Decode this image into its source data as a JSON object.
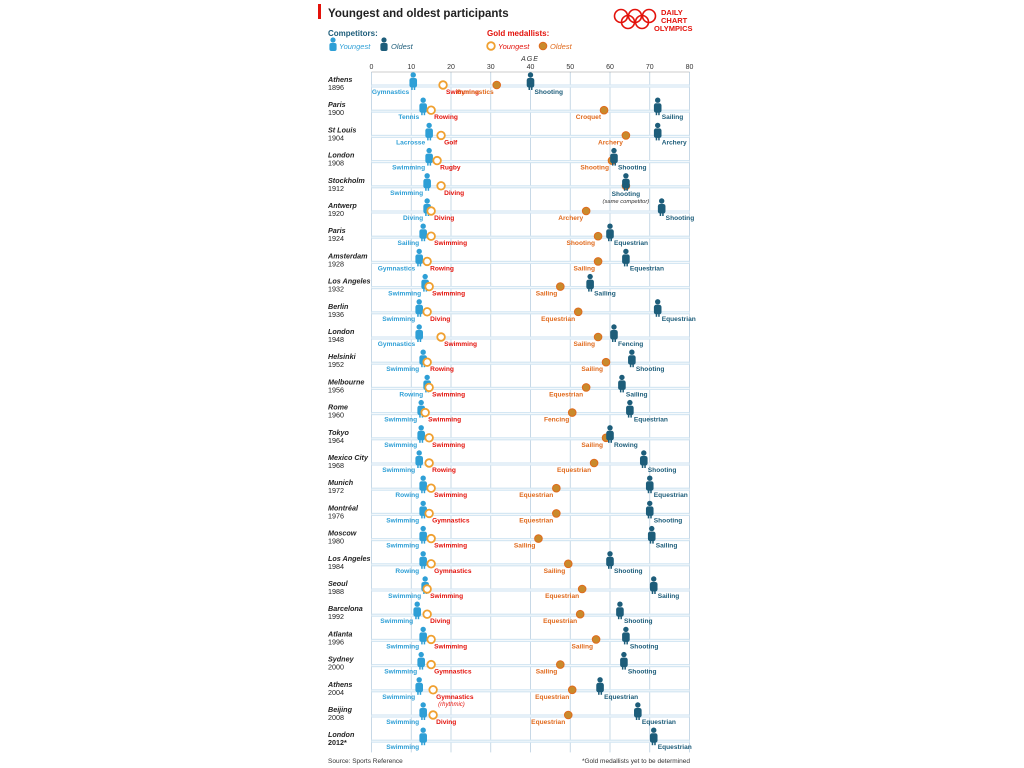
{
  "header": {
    "title": "Youngest and oldest participants",
    "brand_lines": [
      "DAILY",
      "CHART",
      "OLYMPICS"
    ]
  },
  "legend": {
    "competitors_title": "Competitors:",
    "competitors_youngest": "Youngest",
    "competitors_oldest": "Oldest",
    "medallists_title": "Gold medallists:",
    "medallists_youngest": "Youngest",
    "medallists_oldest": "Oldest"
  },
  "footer": {
    "source": "Source: Sports Reference",
    "footnote": "*Gold medallists yet to be determined"
  },
  "colors": {
    "accent_red": "#e3120b",
    "comp_young": "#2e9fd6",
    "comp_old": "#1d5d7a",
    "gold_young": "#e3120b",
    "gold_young_ring": "#f0a030",
    "gold_old": "#e06a1d",
    "gold_old_fill": "#c98a2c",
    "row_band": "#d5e7f3",
    "grid": "#b9cfe0"
  },
  "chart_data": {
    "type": "scatter",
    "xlabel": "AGE",
    "xlim": [
      0,
      80
    ],
    "xticks": [
      0,
      10,
      20,
      30,
      40,
      50,
      60,
      70,
      80
    ],
    "games": [
      {
        "city": "Athens",
        "year": "1896",
        "cy": 10.5,
        "cys": "Gymnastics",
        "co": 40,
        "cos": "Shooting",
        "gy": 18,
        "gys": "Swimming",
        "go": 31.5,
        "gos": "Gymnastics"
      },
      {
        "city": "Paris",
        "year": "1900",
        "cy": 13,
        "cys": "Tennis",
        "co": 72,
        "cos": "Sailing",
        "gy": 15,
        "gys": "Rowing",
        "go": 58.5,
        "gos": "Croquet"
      },
      {
        "city": "St Louis",
        "year": "1904",
        "cy": 14.5,
        "cys": "Lacrosse",
        "co": 72,
        "cos": "Archery",
        "gy": 17.5,
        "gys": "Golf",
        "go": 64,
        "gos": "Archery"
      },
      {
        "city": "London",
        "year": "1908",
        "cy": 14.5,
        "cys": "Swimming",
        "co": 61,
        "cos": "Shooting",
        "gy": 16.5,
        "gys": "Rugby",
        "go": 60.5,
        "gos": "Shooting"
      },
      {
        "city": "Stockholm",
        "year": "1912",
        "cy": 14,
        "cys": "Swimming",
        "co": 64,
        "cos": "Shooting",
        "gy": 17.5,
        "gys": "Diving",
        "go": 64,
        "gos": "",
        "note": "(same competitor)"
      },
      {
        "city": "Antwerp",
        "year": "1920",
        "cy": 14,
        "cys": "Diving",
        "co": 73,
        "cos": "Shooting",
        "gy": 15,
        "gys": "Diving",
        "go": 54,
        "gos": "Archery"
      },
      {
        "city": "Paris",
        "year": "1924",
        "cy": 13,
        "cys": "Sailing",
        "co": 60,
        "cos": "Equestrian",
        "gy": 15,
        "gys": "Swimming",
        "go": 57,
        "gos": "Shooting"
      },
      {
        "city": "Amsterdam",
        "year": "1928",
        "cy": 12,
        "cys": "Gymnastics",
        "co": 64,
        "cos": "Equestrian",
        "gy": 14,
        "gys": "Rowing",
        "go": 57,
        "gos": "Sailing"
      },
      {
        "city": "Los Angeles",
        "year": "1932",
        "cy": 13.5,
        "cys": "Swimming",
        "co": 55,
        "cos": "Sailing",
        "gy": 14.5,
        "gys": "Swimming",
        "go": 47.5,
        "gos": "Sailing"
      },
      {
        "city": "Berlin",
        "year": "1936",
        "cy": 12,
        "cys": "Swimming",
        "co": 72,
        "cos": "Equestrian",
        "gy": 14,
        "gys": "Diving",
        "go": 52,
        "gos": "Equestrian"
      },
      {
        "city": "London",
        "year": "1948",
        "cy": 12,
        "cys": "Gymnastics",
        "co": 61,
        "cos": "Fencing",
        "gy": 17.5,
        "gys": "Swimming",
        "go": 57,
        "gos": "Sailing"
      },
      {
        "city": "Helsinki",
        "year": "1952",
        "cy": 13,
        "cys": "Swimming",
        "co": 65.5,
        "cos": "Shooting",
        "gy": 14,
        "gys": "Rowing",
        "go": 59,
        "gos": "Sailing"
      },
      {
        "city": "Melbourne",
        "year": "1956",
        "cy": 14,
        "cys": "Rowing",
        "co": 63,
        "cos": "Sailing",
        "gy": 14.5,
        "gys": "Swimming",
        "go": 54,
        "gos": "Equestrian"
      },
      {
        "city": "Rome",
        "year": "1960",
        "cy": 12.5,
        "cys": "Swimming",
        "co": 65,
        "cos": "Equestrian",
        "gy": 13.5,
        "gys": "Swimming",
        "go": 50.5,
        "gos": "Fencing"
      },
      {
        "city": "Tokyo",
        "year": "1964",
        "cy": 12.5,
        "cys": "Swimming",
        "co": 60,
        "cos": "Rowing",
        "gy": 14.5,
        "gys": "Swimming",
        "go": 59,
        "gos": "Sailing"
      },
      {
        "city": "Mexico City",
        "year": "1968",
        "cy": 12,
        "cys": "Swimming",
        "co": 68.5,
        "cos": "Shooting",
        "gy": 14.5,
        "gys": "Rowing",
        "go": 56,
        "gos": "Equestrian"
      },
      {
        "city": "Munich",
        "year": "1972",
        "cy": 13,
        "cys": "Rowing",
        "co": 70,
        "cos": "Equestrian",
        "gy": 15,
        "gys": "Swimming",
        "go": 46.5,
        "gos": "Equestrian"
      },
      {
        "city": "Montréal",
        "year": "1976",
        "cy": 13,
        "cys": "Swimming",
        "co": 70,
        "cos": "Shooting",
        "gy": 14.5,
        "gys": "Gymnastics",
        "go": 46.5,
        "gos": "Equestrian"
      },
      {
        "city": "Moscow",
        "year": "1980",
        "cy": 13,
        "cys": "Swimming",
        "co": 70.5,
        "cos": "Sailing",
        "gy": 15,
        "gys": "Swimming",
        "go": 42,
        "gos": "Sailing"
      },
      {
        "city": "Los Angeles",
        "year": "1984",
        "cy": 13,
        "cys": "Rowing",
        "co": 60,
        "cos": "Shooting",
        "gy": 15,
        "gys": "Gymnastics",
        "go": 49.5,
        "gos": "Sailing"
      },
      {
        "city": "Seoul",
        "year": "1988",
        "cy": 13.5,
        "cys": "Swimming",
        "co": 71,
        "cos": "Sailing",
        "gy": 14,
        "gys": "Swimming",
        "go": 53,
        "gos": "Equestrian"
      },
      {
        "city": "Barcelona",
        "year": "1992",
        "cy": 11.5,
        "cys": "Swimming",
        "co": 62.5,
        "cos": "Shooting",
        "gy": 14,
        "gys": "Diving",
        "go": 52.5,
        "gos": "Equestrian"
      },
      {
        "city": "Atlanta",
        "year": "1996",
        "cy": 13,
        "cys": "Swimming",
        "co": 64,
        "cos": "Shooting",
        "gy": 15,
        "gys": "Swimming",
        "go": 56.5,
        "gos": "Sailing"
      },
      {
        "city": "Sydney",
        "year": "2000",
        "cy": 12.5,
        "cys": "Swimming",
        "co": 63.5,
        "cos": "Shooting",
        "gy": 15,
        "gys": "Gymnastics",
        "go": 47.5,
        "gos": "Sailing"
      },
      {
        "city": "Athens",
        "year": "2004",
        "cy": 12,
        "cys": "Swimming",
        "co": 57.5,
        "cos": "Equestrian",
        "gy": 15.5,
        "gys": "Gymnastics",
        "go": 50.5,
        "gos": "Equestrian",
        "gy_note": "(rhythmic)"
      },
      {
        "city": "Beijing",
        "year": "2008",
        "cy": 13,
        "cys": "Swimming",
        "co": 67,
        "cos": "Equestrian",
        "gy": 15.5,
        "gys": "Diving",
        "go": 49.5,
        "gos": "Equestrian"
      },
      {
        "city": "London",
        "year": "2012*",
        "cy": 13,
        "cys": "Swimming",
        "co": 71,
        "cos": "Equestrian",
        "bold": true
      }
    ]
  }
}
